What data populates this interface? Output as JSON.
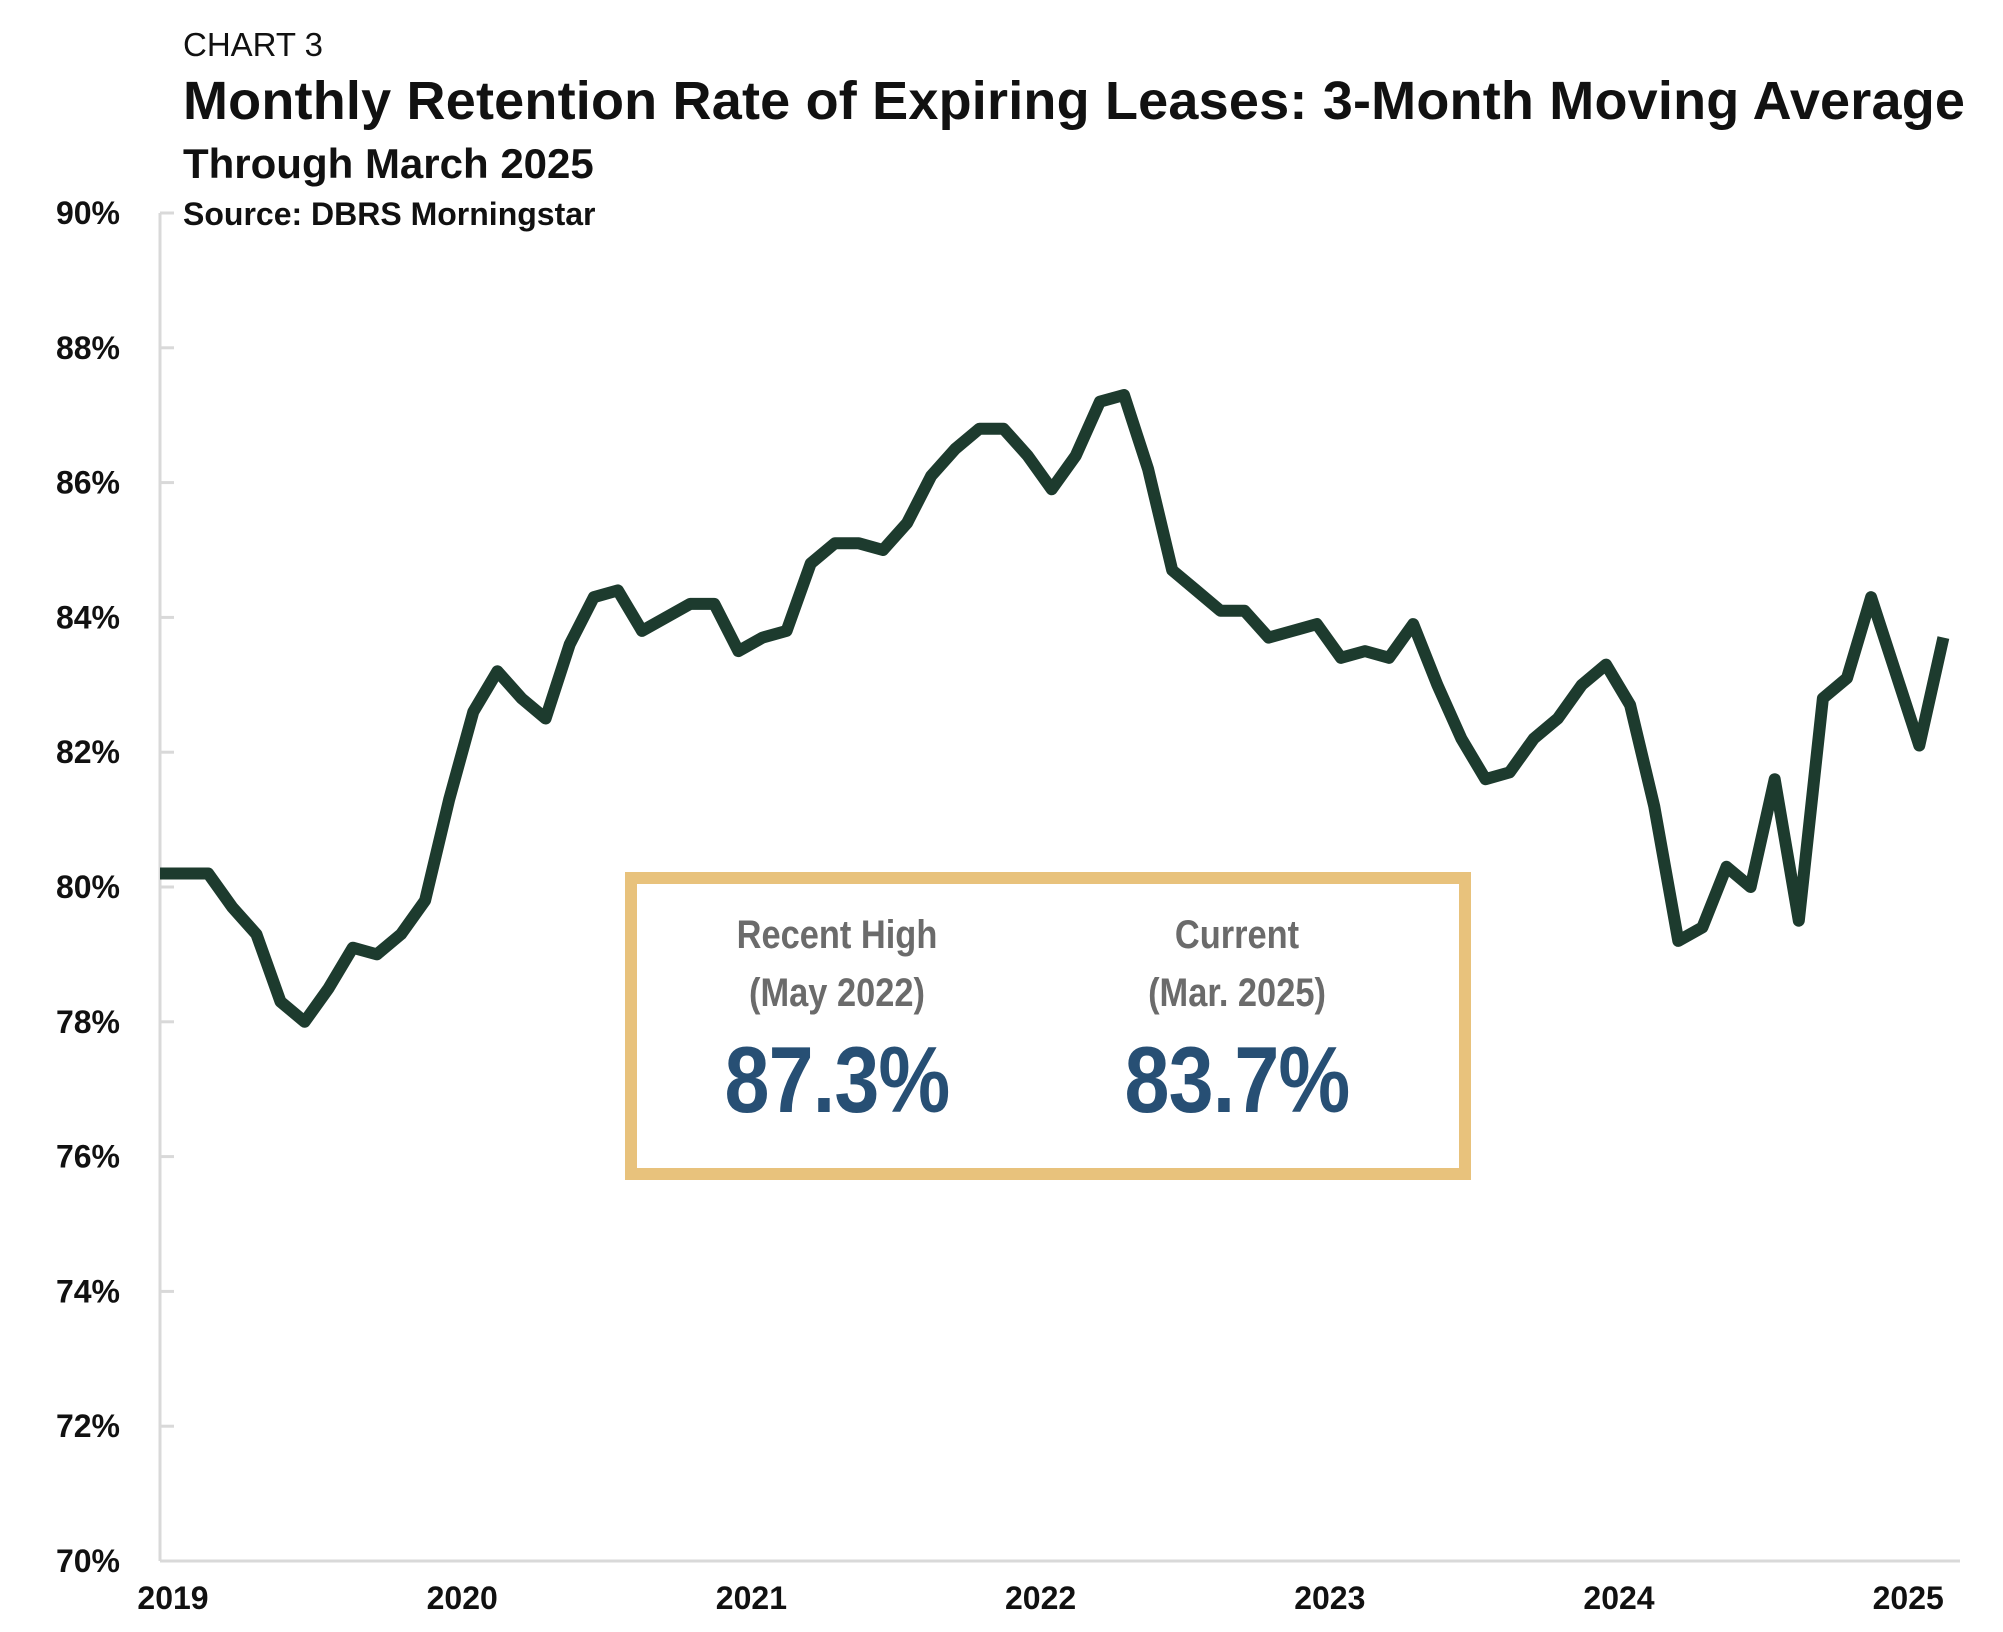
{
  "header": {
    "label": "CHART 3",
    "title": "Monthly Retention Rate of Expiring Leases: 3-Month Moving Average",
    "subtitle": "Through March 2025",
    "source": "Source: DBRS Morningstar"
  },
  "callout": {
    "high_label_1": "Recent High",
    "high_label_2": "(May 2022)",
    "high_value": "87.3%",
    "current_label_1": "Current",
    "current_label_2": "(Mar. 2025)",
    "current_value": "83.7%"
  },
  "colors": {
    "line": "#1d3b2e",
    "callout_border": "#e8c27c",
    "callout_value": "#274f74",
    "callout_label": "#6b6b6b",
    "axis": "#d9d9d9"
  },
  "chart_data": {
    "type": "line",
    "title": "Monthly Retention Rate of Expiring Leases: 3-Month Moving Average",
    "subtitle": "Through March 2025",
    "xlabel": "",
    "ylabel": "",
    "ylim": [
      70,
      90
    ],
    "yticks": [
      "70%",
      "72%",
      "74%",
      "76%",
      "78%",
      "80%",
      "82%",
      "84%",
      "86%",
      "88%",
      "90%"
    ],
    "xticks": [
      "2019",
      "2020",
      "2021",
      "2022",
      "2023",
      "2024",
      "2025"
    ],
    "grid": false,
    "legend": "none",
    "series": [
      {
        "x": [
          "2019-01",
          "2019-02",
          "2019-03",
          "2019-04",
          "2019-05",
          "2019-06",
          "2019-07",
          "2019-08",
          "2019-09",
          "2019-10",
          "2019-11",
          "2019-12",
          "2020-01",
          "2020-02",
          "2020-03",
          "2020-04",
          "2020-05",
          "2020-06",
          "2020-07",
          "2020-08",
          "2020-09",
          "2020-10",
          "2020-11",
          "2020-12",
          "2021-01",
          "2021-02",
          "2021-03",
          "2021-04",
          "2021-05",
          "2021-06",
          "2021-07",
          "2021-08",
          "2021-09",
          "2021-10",
          "2021-11",
          "2021-12",
          "2022-01",
          "2022-02",
          "2022-03",
          "2022-04",
          "2022-05",
          "2022-06",
          "2022-07",
          "2022-08",
          "2022-09",
          "2022-10",
          "2022-11",
          "2022-12",
          "2023-01",
          "2023-02",
          "2023-03",
          "2023-04",
          "2023-05",
          "2023-06",
          "2023-07",
          "2023-08",
          "2023-09",
          "2023-10",
          "2023-11",
          "2023-12",
          "2024-01",
          "2024-02",
          "2024-03",
          "2024-04",
          "2024-05",
          "2024-06",
          "2024-07",
          "2024-08",
          "2024-09",
          "2024-10",
          "2024-11",
          "2024-12",
          "2025-01",
          "2025-02",
          "2025-03"
        ],
        "values": [
          80.2,
          80.2,
          80.2,
          79.7,
          79.3,
          78.3,
          78.0,
          78.5,
          79.1,
          79.0,
          79.3,
          79.8,
          81.3,
          82.6,
          83.2,
          82.8,
          82.5,
          83.6,
          84.3,
          84.4,
          83.8,
          84.0,
          84.2,
          84.2,
          83.5,
          83.7,
          83.8,
          84.8,
          85.1,
          85.1,
          85.0,
          85.4,
          86.1,
          86.5,
          86.8,
          86.8,
          86.4,
          85.9,
          86.4,
          87.2,
          87.3,
          86.2,
          84.7,
          84.4,
          84.1,
          84.1,
          83.7,
          83.8,
          83.9,
          83.4,
          83.5,
          83.4,
          83.9,
          83.0,
          82.2,
          81.6,
          81.7,
          82.2,
          82.5,
          83.0,
          83.3,
          82.7,
          81.2,
          79.2,
          79.4,
          80.3,
          80.0,
          81.6,
          79.5,
          82.8,
          83.1,
          84.3,
          83.2,
          82.1,
          83.7
        ]
      }
    ]
  }
}
